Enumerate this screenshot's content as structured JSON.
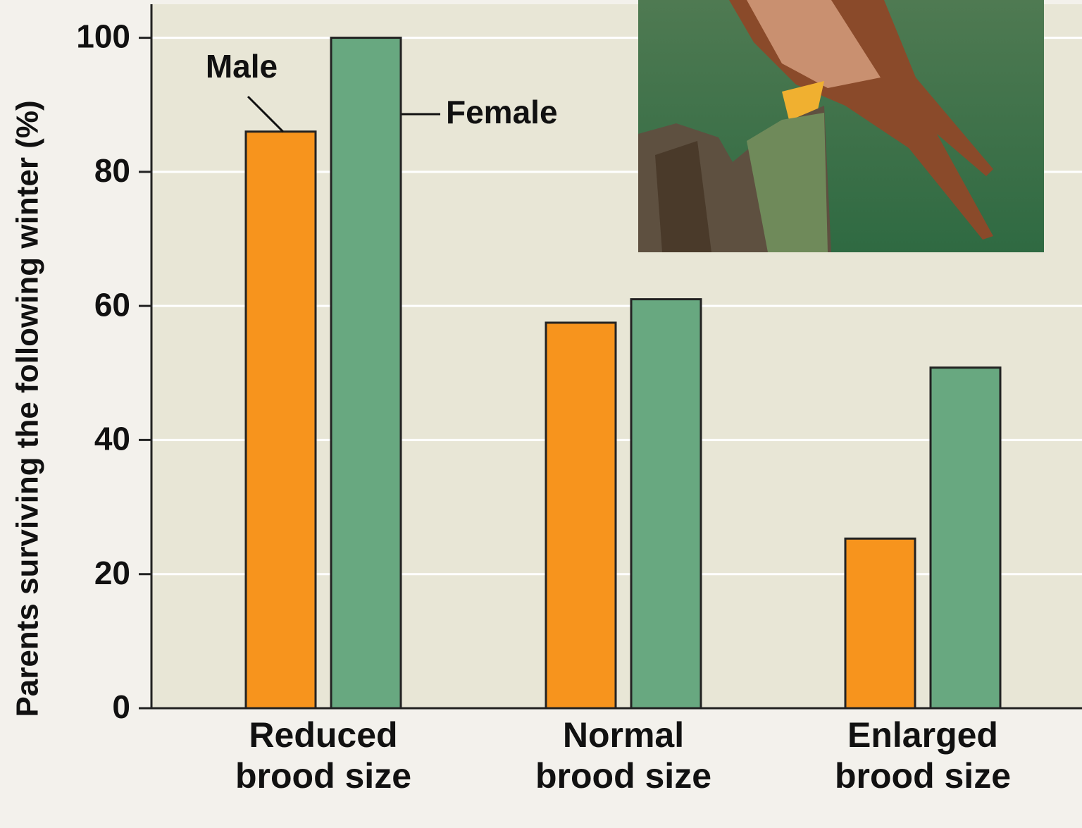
{
  "chart_data": {
    "type": "bar",
    "y_label": "Parents surviving the following winter (%)",
    "categories": [
      "Reduced\nbrood size",
      "Normal\nbrood size",
      "Enlarged\nbrood size"
    ],
    "series": [
      {
        "name": "Male",
        "color": "#f7941d",
        "values": [
          86,
          57.5,
          25.3
        ]
      },
      {
        "name": "Female",
        "color": "#68a880",
        "values": [
          100,
          61,
          50.8
        ]
      }
    ],
    "ylim": [
      0,
      105
    ],
    "yticks": [
      0,
      20,
      40,
      60,
      80,
      100
    ],
    "grid": true
  }
}
